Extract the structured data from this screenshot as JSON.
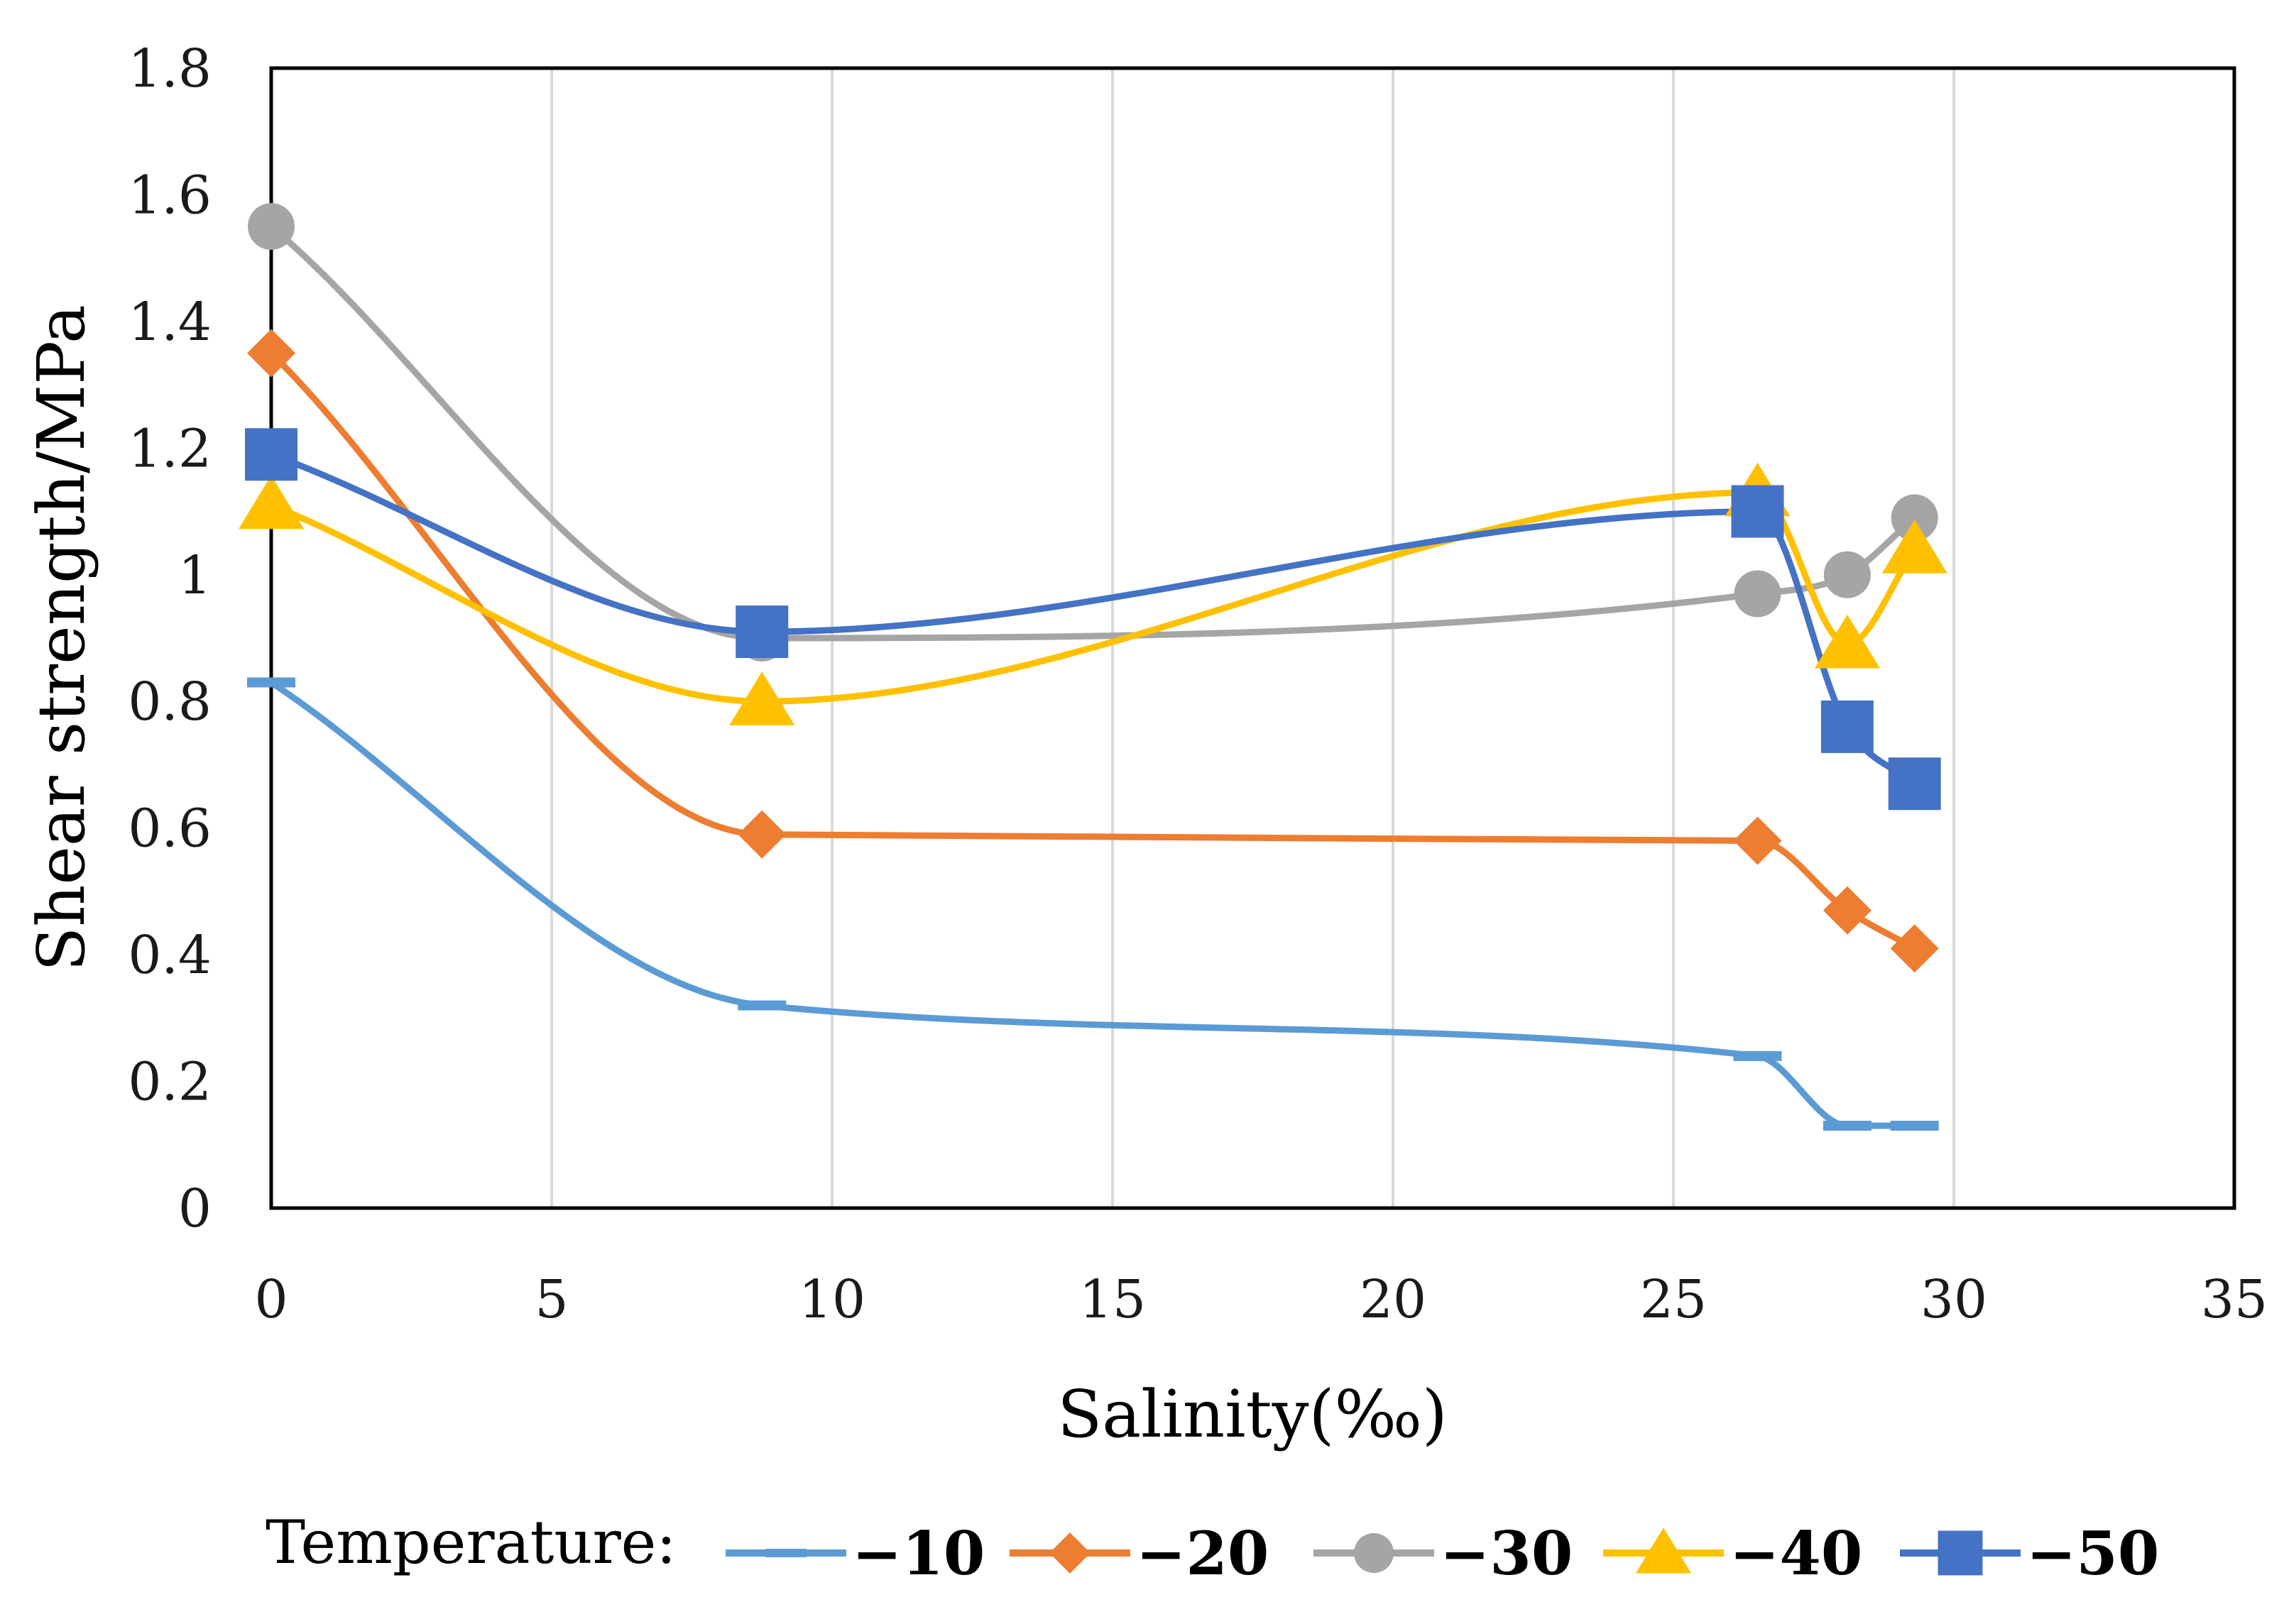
{
  "chart_data": {
    "type": "line",
    "title": "",
    "xlabel": "Salinity(‰)",
    "ylabel": "Shear strength/MPa",
    "xlim": [
      0,
      35
    ],
    "ylim": [
      0,
      1.8
    ],
    "x_ticks": [
      "0",
      "5",
      "10",
      "15",
      "20",
      "25",
      "30",
      "35"
    ],
    "y_ticks": [
      "0",
      "0.2",
      "0.4",
      "0.6",
      "0.8",
      "1",
      "1.2",
      "1.4",
      "1.6",
      "1.8"
    ],
    "vertical_grid": true,
    "legend_title": "Temperature:",
    "legend_position": "bottom",
    "x": [
      0,
      8.75,
      26.5,
      28.1,
      29.3
    ],
    "series": [
      {
        "name": "−10",
        "color": "#5B9BD5",
        "marker": "dash",
        "values": [
          0.83,
          0.32,
          0.24,
          0.13,
          0.13
        ]
      },
      {
        "name": "−20",
        "color": "#ED7D31",
        "marker": "diamond",
        "values": [
          1.35,
          0.59,
          0.58,
          0.47,
          0.41
        ]
      },
      {
        "name": "−30",
        "color": "#A5A5A5",
        "marker": "circle",
        "values": [
          1.55,
          0.9,
          0.97,
          1.0,
          1.09
        ]
      },
      {
        "name": "−40",
        "color": "#FFC000",
        "marker": "triangle",
        "values": [
          1.11,
          0.8,
          1.13,
          0.89,
          1.04
        ]
      },
      {
        "name": "−50",
        "color": "#4472C4",
        "marker": "square",
        "values": [
          1.19,
          0.91,
          1.1,
          0.76,
          0.67
        ]
      }
    ]
  }
}
